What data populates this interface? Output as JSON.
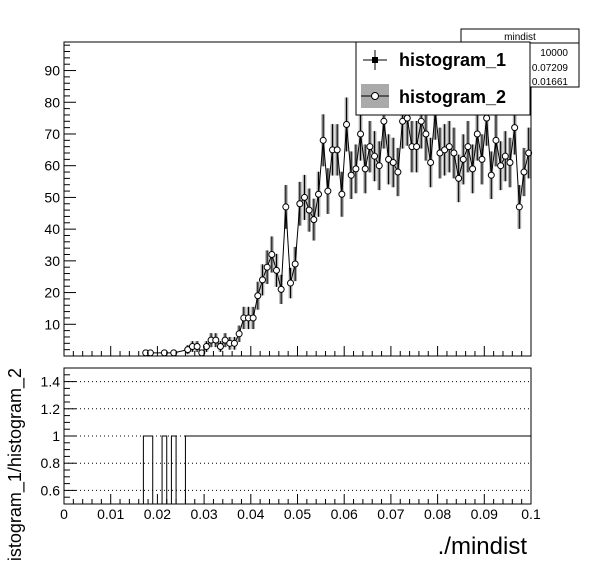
{
  "stats_box": {
    "title": "mindist",
    "rows": [
      "10000",
      "0.07209",
      "0.01661"
    ]
  },
  "legend": {
    "placement": "top-right",
    "entries": [
      {
        "label": "histogram_1",
        "marker": "filled-square",
        "color": "#000000"
      },
      {
        "label": "histogram_2",
        "marker": "open-circle-with-gray-band",
        "color": "#000000",
        "band_color": "#aaaaaa"
      }
    ]
  },
  "chart_data": [
    {
      "type": "line",
      "panel": "top",
      "series_style": "histogram markers with error bars",
      "xlim": [
        0,
        0.1
      ],
      "ylim": [
        0,
        99
      ],
      "y_ticks": [
        10,
        20,
        30,
        40,
        50,
        60,
        70,
        80,
        90
      ],
      "grid": false,
      "series": [
        {
          "name": "histogram_1",
          "bin_width": 0.001,
          "x": [
            0.0175,
            0.0185,
            0.0215,
            0.0235,
            0.0265,
            0.0275,
            0.0285,
            0.0295,
            0.0305,
            0.0315,
            0.0325,
            0.0335,
            0.0345,
            0.0355,
            0.0365,
            0.0375,
            0.0385,
            0.0395,
            0.0405,
            0.0415,
            0.0425,
            0.0435,
            0.0445,
            0.0455,
            0.0465,
            0.0475,
            0.0485,
            0.0495,
            0.0505,
            0.0515,
            0.0525,
            0.0535,
            0.0545,
            0.0555,
            0.0565,
            0.0575,
            0.0585,
            0.0595,
            0.0605,
            0.0615,
            0.0625,
            0.0635,
            0.0645,
            0.0655,
            0.0665,
            0.0675,
            0.0685,
            0.0695,
            0.0705,
            0.0715,
            0.0725,
            0.0735,
            0.0745,
            0.0755,
            0.0765,
            0.0775,
            0.0785,
            0.0795,
            0.0805,
            0.0815,
            0.0825,
            0.0835,
            0.0845,
            0.0855,
            0.0865,
            0.0875,
            0.0885,
            0.0895,
            0.0905,
            0.0915,
            0.0925,
            0.0935,
            0.0945,
            0.0955,
            0.0965,
            0.0975,
            0.0985,
            0.0995
          ],
          "y": [
            1,
            1,
            1,
            1,
            2,
            3,
            3,
            1,
            3,
            5,
            5,
            3,
            5,
            4,
            4,
            7,
            12,
            12,
            12,
            19,
            24,
            28,
            32,
            27,
            21,
            47,
            23,
            29,
            48,
            50,
            46,
            43,
            51,
            68,
            52,
            65,
            65,
            51,
            73,
            57,
            59,
            70,
            59,
            66,
            63,
            60,
            74,
            62,
            61,
            58,
            74,
            75,
            66,
            66,
            74,
            70,
            61,
            77,
            64,
            65,
            66,
            64,
            56,
            62,
            66,
            59,
            70,
            62,
            75,
            57,
            68,
            60,
            63,
            61,
            72,
            47,
            58,
            64
          ],
          "yerr": [
            1,
            1,
            1,
            1,
            1.4,
            1.7,
            1.7,
            1,
            1.7,
            2.2,
            2.2,
            1.7,
            2.2,
            2,
            2,
            2.6,
            3.5,
            3.5,
            3.5,
            4.4,
            4.9,
            5.3,
            5.7,
            5.2,
            4.6,
            6.9,
            4.8,
            5.4,
            6.9,
            7.1,
            6.8,
            6.6,
            7.1,
            8.2,
            7.2,
            8.1,
            8.1,
            7.1,
            8.5,
            7.5,
            7.7,
            8.4,
            7.7,
            8.1,
            7.9,
            7.7,
            8.6,
            7.9,
            7.8,
            7.6,
            8.6,
            8.7,
            8.1,
            8.1,
            8.6,
            8.4,
            7.8,
            8.8,
            8,
            8.1,
            8.1,
            8,
            7.5,
            7.9,
            8.1,
            7.7,
            8.4,
            7.9,
            8.7,
            7.5,
            8.2,
            7.7,
            7.9,
            7.8,
            8.5,
            6.9,
            7.6,
            8
          ]
        },
        {
          "name": "histogram_2",
          "bin_width": 0.001,
          "x": [
            0.0175,
            0.0185,
            0.0215,
            0.0235,
            0.0265,
            0.0275,
            0.0285,
            0.0295,
            0.0305,
            0.0315,
            0.0325,
            0.0335,
            0.0345,
            0.0355,
            0.0365,
            0.0375,
            0.0385,
            0.0395,
            0.0405,
            0.0415,
            0.0425,
            0.0435,
            0.0445,
            0.0455,
            0.0465,
            0.0475,
            0.0485,
            0.0495,
            0.0505,
            0.0515,
            0.0525,
            0.0535,
            0.0545,
            0.0555,
            0.0565,
            0.0575,
            0.0585,
            0.0595,
            0.0605,
            0.0615,
            0.0625,
            0.0635,
            0.0645,
            0.0655,
            0.0665,
            0.0675,
            0.0685,
            0.0695,
            0.0705,
            0.0715,
            0.0725,
            0.0735,
            0.0745,
            0.0755,
            0.0765,
            0.0775,
            0.0785,
            0.0795,
            0.0805,
            0.0815,
            0.0825,
            0.0835,
            0.0845,
            0.0855,
            0.0865,
            0.0875,
            0.0885,
            0.0895,
            0.0905,
            0.0915,
            0.0925,
            0.0935,
            0.0945,
            0.0955,
            0.0965,
            0.0975,
            0.0985,
            0.0995
          ],
          "y": [
            1,
            1,
            1,
            1,
            2,
            3,
            3,
            1,
            3,
            5,
            5,
            3,
            5,
            4,
            4,
            7,
            12,
            12,
            12,
            19,
            24,
            28,
            32,
            27,
            21,
            47,
            23,
            29,
            48,
            50,
            46,
            43,
            51,
            68,
            52,
            65,
            65,
            51,
            73,
            57,
            59,
            70,
            59,
            66,
            63,
            60,
            74,
            62,
            61,
            58,
            74,
            75,
            66,
            66,
            74,
            70,
            61,
            77,
            64,
            65,
            66,
            64,
            56,
            62,
            66,
            59,
            70,
            62,
            75,
            57,
            68,
            60,
            63,
            61,
            72,
            47,
            58,
            64
          ],
          "yerr": [
            1,
            1,
            1,
            1,
            1.4,
            1.7,
            1.7,
            1,
            1.7,
            2.2,
            2.2,
            1.7,
            2.2,
            2,
            2,
            2.6,
            3.5,
            3.5,
            3.5,
            4.4,
            4.9,
            5.3,
            5.7,
            5.2,
            4.6,
            6.9,
            4.8,
            5.4,
            6.9,
            7.1,
            6.8,
            6.6,
            7.1,
            8.2,
            7.2,
            8.1,
            8.1,
            7.1,
            8.5,
            7.5,
            7.7,
            8.4,
            7.7,
            8.1,
            7.9,
            7.7,
            8.6,
            7.9,
            7.8,
            7.6,
            8.6,
            8.7,
            8.1,
            8.1,
            8.6,
            8.4,
            7.8,
            8.8,
            8,
            8.1,
            8.1,
            8,
            7.5,
            7.9,
            8.1,
            7.7,
            8.4,
            7.9,
            8.7,
            7.5,
            8.2,
            7.7,
            7.9,
            7.8,
            8.5,
            6.9,
            7.6,
            8
          ]
        }
      ]
    },
    {
      "type": "line",
      "panel": "ratio",
      "series_style": "step",
      "xlabel": "./mindist",
      "ylabel": "istogram_1/histogram_2",
      "xlim": [
        0,
        0.1
      ],
      "ylim": [
        0.5,
        1.5
      ],
      "x_ticks": [
        "0",
        "0.01",
        "0.02",
        "0.03",
        "0.04",
        "0.05",
        "0.06",
        "0.07",
        "0.08",
        "0.09",
        "0.1"
      ],
      "y_ticks": [
        "0.6",
        "0.8",
        "1",
        "1.2",
        "1.4"
      ],
      "grid": "dotted horizontal at y ticks",
      "series": [
        {
          "name": "ratio",
          "x": [
            0.017,
            0.019,
            0.021,
            0.022,
            0.023,
            0.024,
            0.025,
            0.026,
            0.1
          ],
          "y": [
            1,
            0,
            1,
            0,
            1,
            0,
            0,
            1,
            1
          ]
        }
      ]
    }
  ]
}
